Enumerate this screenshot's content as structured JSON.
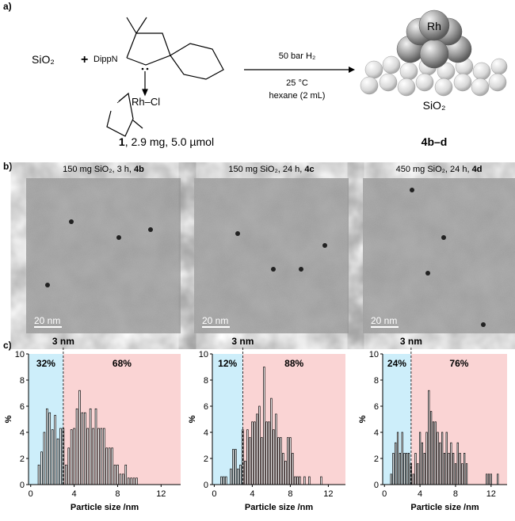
{
  "panels": [
    "a)",
    "b)",
    "c)"
  ],
  "scheme": {
    "reactant": "SiO₂",
    "plus": "+",
    "ligand_n": "DippN",
    "metal": "Rh–Cl",
    "conditions": [
      "50 bar H₂",
      "25 °C",
      "hexane  (2 mL)"
    ],
    "product_metal": "Rh",
    "product_support": "SiO₂",
    "reagent_label": {
      "compound": "1",
      "details": ", 2.9 mg, 5.0 µmol"
    },
    "product_label": "4b–d"
  },
  "tem": [
    {
      "title": "150 mg SiO₂, 3 h, ",
      "compound": "4b",
      "scale_bar": "20 nm"
    },
    {
      "title": "150 mg SiO₂, 24 h, ",
      "compound": "4c",
      "scale_bar": "20 nm"
    },
    {
      "title": "450 mg SiO₂, 24 h, ",
      "compound": "4d",
      "scale_bar": "20 nm"
    }
  ],
  "chart_data": [
    {
      "type": "bar",
      "xlabel": "Particle size /nm",
      "ylabel": "%",
      "threshold": 3,
      "threshold_label": "3 nm",
      "region_labels": [
        "32%",
        "68%"
      ],
      "region_colors": [
        "#cdeefa",
        "#fad4d4"
      ],
      "color": "#ffffff",
      "x": [
        0.75,
        1,
        1.25,
        1.5,
        1.75,
        2,
        2.25,
        2.5,
        2.75,
        3,
        3.25,
        3.5,
        3.75,
        4,
        4.25,
        4.5,
        4.75,
        5,
        5.25,
        5.5,
        5.75,
        6,
        6.25,
        6.5,
        6.75,
        7,
        7.25,
        7.5,
        7.75,
        8,
        8.25,
        8.5,
        8.75,
        9,
        9.25,
        9.5,
        9.75
      ],
      "values": [
        1.5,
        2.5,
        4,
        5.8,
        5.5,
        4.2,
        5.3,
        3.5,
        4.3,
        4.3,
        1.5,
        2.8,
        4.2,
        4.3,
        5.8,
        7.2,
        5.5,
        5.5,
        4.3,
        5.8,
        4.3,
        5.8,
        4.3,
        4.3,
        4.3,
        2.8,
        2.8,
        2.8,
        1.5,
        1.5,
        0.8,
        0.8,
        1.5,
        0.5,
        0.5,
        0.5,
        0.5
      ],
      "xlim": [
        -0.2,
        13.8
      ],
      "xticks": [
        0,
        4,
        8,
        12
      ],
      "ylim": [
        0,
        10
      ],
      "yticks": [
        0,
        2,
        4,
        6,
        8,
        10
      ]
    },
    {
      "type": "bar",
      "xlabel": "Particle size /nm",
      "ylabel": "%",
      "threshold": 3,
      "threshold_label": "3 nm",
      "region_labels": [
        "12%",
        "88%"
      ],
      "region_colors": [
        "#cdeefa",
        "#fad4d4"
      ],
      "color": "#ffffff",
      "x": [
        0.75,
        1,
        1.25,
        1.75,
        2,
        2.25,
        2.5,
        2.75,
        3,
        3.25,
        3.5,
        3.75,
        4,
        4.25,
        4.5,
        4.75,
        5,
        5.25,
        5.5,
        5.75,
        6,
        6.25,
        6.5,
        6.75,
        7,
        7.25,
        7.5,
        7.75,
        8,
        8.25,
        8.5,
        8.75,
        9,
        9.5,
        10,
        11.25
      ],
      "values": [
        0.6,
        0.6,
        0.6,
        1.2,
        2.7,
        2.7,
        1.2,
        1.5,
        4.2,
        1.8,
        4.2,
        3.6,
        4.8,
        4.8,
        5.4,
        6,
        3.6,
        9,
        4.8,
        4.8,
        6.6,
        4.2,
        5.4,
        3.6,
        3.6,
        2.4,
        1.8,
        3.6,
        3.6,
        2.4,
        0.6,
        0.6,
        0.6,
        0.6,
        0.6,
        0.6
      ],
      "xlim": [
        -0.2,
        13.8
      ],
      "xticks": [
        0,
        4,
        8,
        12
      ],
      "ylim": [
        0,
        10
      ],
      "yticks": [
        0,
        2,
        4,
        6,
        8,
        10
      ]
    },
    {
      "type": "bar",
      "xlabel": "Particle size /nm",
      "ylabel": "%",
      "threshold": 3,
      "threshold_label": "3 nm",
      "region_labels": [
        "24%",
        "76%"
      ],
      "region_colors": [
        "#cdeefa",
        "#fad4d4"
      ],
      "color": "#ffffff",
      "x": [
        0.75,
        1,
        1.25,
        1.5,
        1.75,
        2,
        2.25,
        2.5,
        2.75,
        3,
        3.25,
        3.5,
        3.75,
        4,
        4.25,
        4.5,
        4.75,
        5,
        5.25,
        5.5,
        5.75,
        6,
        6.25,
        6.5,
        6.75,
        7,
        7.25,
        7.5,
        7.75,
        8,
        8.25,
        8.5,
        8.75,
        9,
        9.25,
        11.5,
        11.75,
        12,
        12.75
      ],
      "values": [
        0.8,
        2.4,
        3.2,
        4,
        2.4,
        4,
        2.4,
        2.4,
        2.4,
        1.6,
        0.8,
        2.4,
        1.6,
        4,
        3.2,
        2.4,
        4,
        7.2,
        5.6,
        4.8,
        4.8,
        4,
        3.2,
        4,
        2.4,
        4,
        2.4,
        3.2,
        2.4,
        1.6,
        3.2,
        2.4,
        1.6,
        2.4,
        1.6,
        0.8,
        0.8,
        0.8,
        0.8
      ],
      "xlim": [
        -0.2,
        13.8
      ],
      "xticks": [
        0,
        4,
        8,
        12
      ],
      "ylim": [
        0,
        10
      ],
      "yticks": [
        0,
        2,
        4,
        6,
        8,
        10
      ]
    }
  ]
}
